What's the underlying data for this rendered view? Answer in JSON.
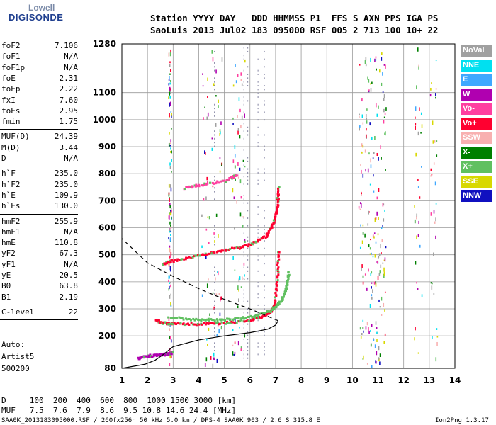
{
  "logo": {
    "line1": "Lowell",
    "line2": "DIGISONDE"
  },
  "header": {
    "line1": "Station YYYY DAY   DDD HHMMSS P1  FFS S AXN PPS IGA PS",
    "line2": "SaoLuis 2013 Jul02 183 095000 RSF 005 2 713 100 10+ 22"
  },
  "params": {
    "group1": [
      {
        "name": "foF2",
        "value": "7.106"
      },
      {
        "name": "foF1",
        "value": "N/A"
      },
      {
        "name": "foF1p",
        "value": "N/A"
      },
      {
        "name": "foE",
        "value": "2.31"
      },
      {
        "name": "foEp",
        "value": "2.22"
      },
      {
        "name": "fxI",
        "value": "7.60"
      },
      {
        "name": "foEs",
        "value": "2.95"
      },
      {
        "name": "fmin",
        "value": "1.75"
      }
    ],
    "group2": [
      {
        "name": "MUF(D)",
        "value": "24.39"
      },
      {
        "name": "M(D)",
        "value": "3.44"
      },
      {
        "name": "D",
        "value": "N/A"
      }
    ],
    "group3": [
      {
        "name": "h`F",
        "value": "235.0"
      },
      {
        "name": "h`F2",
        "value": "235.0"
      },
      {
        "name": "h`E",
        "value": "109.9"
      },
      {
        "name": "h`Es",
        "value": "130.0"
      }
    ],
    "group4": [
      {
        "name": "hmF2",
        "value": "255.9"
      },
      {
        "name": "hmF1",
        "value": "N/A"
      },
      {
        "name": "hmE",
        "value": "110.8"
      },
      {
        "name": "yF2",
        "value": "67.3"
      },
      {
        "name": "yF1",
        "value": "N/A"
      },
      {
        "name": "yE",
        "value": "20.5"
      },
      {
        "name": "B0",
        "value": "63.8"
      },
      {
        "name": "B1",
        "value": "2.19"
      }
    ],
    "group5": [
      {
        "name": "C-level",
        "value": "22"
      }
    ]
  },
  "autoscale": {
    "line1": "Auto:",
    "line2": "Artist5",
    "line3": "500200"
  },
  "legend": [
    {
      "label": "NoVal",
      "color": "#a0a0a0"
    },
    {
      "label": "NNE",
      "color": "#00e0f0"
    },
    {
      "label": "E",
      "color": "#3fa8ff"
    },
    {
      "label": "W",
      "color": "#b000b0"
    },
    {
      "label": "Vo-",
      "color": "#ff3fa0"
    },
    {
      "label": "Vo+",
      "color": "#ff0030"
    },
    {
      "label": "SSW",
      "color": "#f8b0b0"
    },
    {
      "label": "X-",
      "color": "#008000"
    },
    {
      "label": "X+",
      "color": "#60c060"
    },
    {
      "label": "SSE",
      "color": "#d8d800"
    },
    {
      "label": "NNW",
      "color": "#1010c0"
    }
  ],
  "bottom": {
    "d_line": "D     100  200  400  600  800  1000 1500 3000 [km]",
    "muf_line": "MUF   7.5  7.6  7.9  8.6  9.5 10.8 14.6 24.4 [MHz]"
  },
  "footer": {
    "left": "SAA0K_2013183095000.RSF / 260fx256h 50 kHz 5.0 km / DPS-4 SAA0K 903 / 2.6 S 315.8 E",
    "right": "Ion2Png 1.3.17"
  },
  "chart_data": {
    "type": "scatter",
    "x_ticks": [
      "1",
      "2",
      "3",
      "4",
      "5",
      "6",
      "7",
      "8",
      "9",
      "10",
      "11",
      "12",
      "13",
      "14"
    ],
    "y_ticks": [
      "80",
      "200",
      "300",
      "400",
      "500",
      "600",
      "700",
      "800",
      "900",
      "1000",
      "1100",
      "1280"
    ],
    "xlim": [
      1,
      14
    ],
    "ylim": [
      80,
      1280
    ],
    "grid": true,
    "legend_position": "right",
    "traces": [
      {
        "name": "O-trace F2 1st hop",
        "x": [
          2.3,
          2.6,
          3.0,
          4.0,
          5.0,
          6.0,
          6.5,
          6.8,
          6.95,
          7.05,
          7.1
        ],
        "y": [
          260,
          250,
          248,
          246,
          250,
          262,
          275,
          290,
          320,
          420,
          520
        ]
      },
      {
        "name": "O-trace F2 2nd hop",
        "x": [
          2.6,
          3.0,
          4.0,
          5.0,
          6.0,
          6.6,
          6.9,
          7.05,
          7.1
        ],
        "y": [
          470,
          480,
          500,
          518,
          540,
          570,
          620,
          680,
          760
        ]
      },
      {
        "name": "O-trace F2 3rd hop",
        "x": [
          3.4,
          4.0,
          5.0,
          5.5
        ],
        "y": [
          750,
          760,
          775,
          800
        ]
      },
      {
        "name": "X-trace F2",
        "x": [
          2.8,
          4.0,
          5.0,
          6.0,
          6.8,
          7.2,
          7.4,
          7.5
        ],
        "y": [
          270,
          262,
          262,
          272,
          295,
          330,
          380,
          440
        ]
      },
      {
        "name": "Es trace",
        "x": [
          1.6,
          2.0,
          2.4,
          2.8,
          2.95
        ],
        "y": [
          120,
          128,
          132,
          135,
          140
        ]
      },
      {
        "name": "Profile",
        "x": [
          1.0,
          1.9,
          2.3,
          2.6,
          3.0,
          4.0,
          5.0,
          6.0,
          6.7,
          7.0,
          7.1
        ],
        "y": [
          80,
          95,
          110,
          130,
          160,
          185,
          200,
          212,
          225,
          240,
          256
        ]
      },
      {
        "name": "Topside extrapolation",
        "x": [
          7.1,
          6.0,
          5.0,
          4.0,
          3.0,
          2.0,
          1.0
        ],
        "y": [
          256,
          300,
          335,
          375,
          420,
          470,
          560
        ]
      }
    ]
  }
}
